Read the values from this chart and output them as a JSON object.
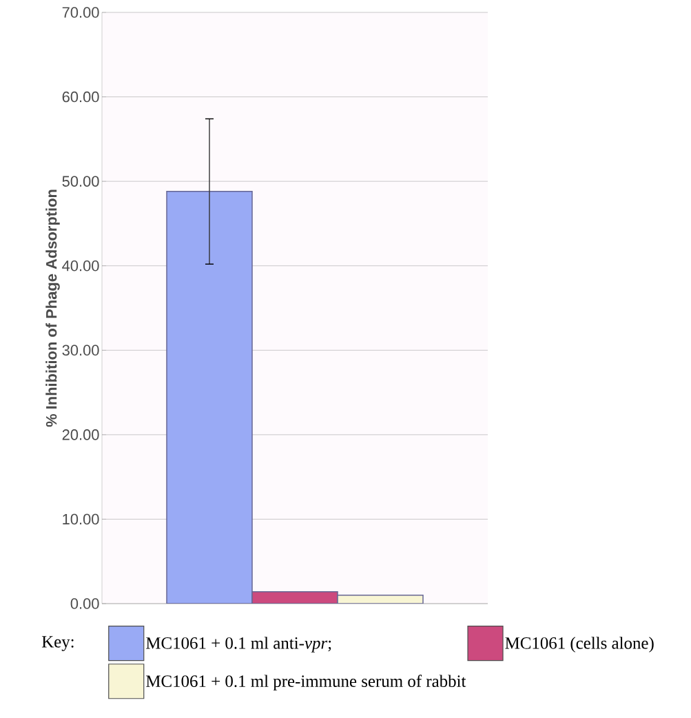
{
  "chart_data": {
    "type": "bar",
    "ylabel": "% Inhibition of Phage Adsorption",
    "legend_title": "Key:",
    "categories": [
      null
    ],
    "series": [
      {
        "name": "MC1061 + 0.1 ml anti-*vpr*;",
        "color": "#99aaf5",
        "values": [
          48.8
        ],
        "errors": [
          8.6
        ]
      },
      {
        "name": "MC1061 (cells alone)",
        "color": "#cc4a7e",
        "values": [
          1.4
        ]
      },
      {
        "name": "MC1061 + 0.1 ml pre-immune serum of rabbit",
        "color": "#f8f5d4",
        "values": [
          1.0
        ]
      }
    ],
    "ylim": [
      0,
      70
    ],
    "yticks": [
      {
        "value": 0,
        "label": "0.00"
      },
      {
        "value": 10,
        "label": "10.00"
      },
      {
        "value": 20,
        "label": "20.00"
      },
      {
        "value": 30,
        "label": "30.00"
      },
      {
        "value": 40,
        "label": "40.00"
      },
      {
        "value": 50,
        "label": "50.00"
      },
      {
        "value": 60,
        "label": "60.00"
      },
      {
        "value": 70,
        "label": "70.00"
      }
    ],
    "grid": "y",
    "legend": "bottom"
  }
}
